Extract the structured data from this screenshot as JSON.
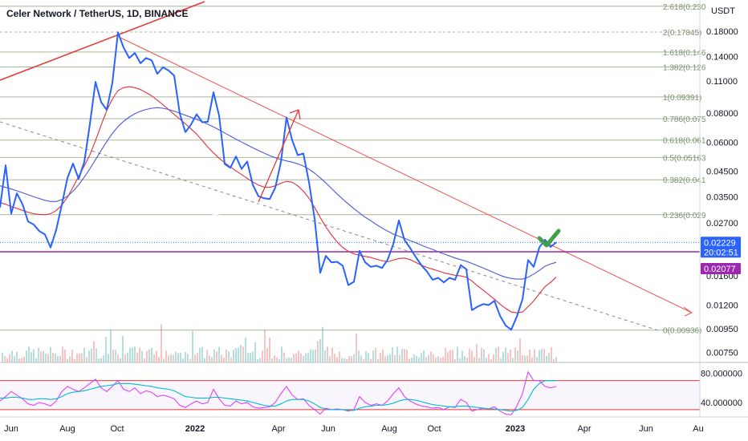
{
  "header": {
    "title": "Celer Network / TetherUS, 1D, BINANCE",
    "currency": "USDT"
  },
  "chart_data": [
    {
      "type": "line",
      "title": "Celer Network / TetherUS, 1D, BINANCE",
      "ylabel": "USDT",
      "y_scale": "log",
      "ylim": [
        0.0068,
        0.245
      ],
      "grid": false,
      "x_tick_labels": [
        "Jun",
        "Aug",
        "Oct",
        "2022",
        "Apr",
        "Jun",
        "Aug",
        "Oct",
        "2023",
        "Apr",
        "Jun",
        "Au"
      ],
      "y_tick_labels": [
        "0.18000",
        "0.14000",
        "0.11000",
        "0.08000",
        "0.06000",
        "0.04500",
        "0.03500",
        "0.02700",
        "0.01600",
        "0.01200",
        "0.00950",
        "0.00750"
      ],
      "y_tick_values": [
        0.18,
        0.14,
        0.11,
        0.08,
        0.06,
        0.045,
        0.035,
        0.027,
        0.016,
        0.012,
        0.0095,
        0.0075
      ],
      "fib_levels": [
        {
          "label": "2.618(0.230",
          "value": 0.2303
        },
        {
          "label": "2(0.17845)",
          "value": 0.17845
        },
        {
          "label": "1.618(0.146",
          "value": 0.1465
        },
        {
          "label": "1.382(0.126",
          "value": 0.1263
        },
        {
          "label": "1(0.09391)",
          "value": 0.09391
        },
        {
          "label": "0.786(0.075",
          "value": 0.0758
        },
        {
          "label": "0.618(0.061",
          "value": 0.0613
        },
        {
          "label": "0.5(0.05163",
          "value": 0.05163
        },
        {
          "label": "0.382(0.041",
          "value": 0.0414
        },
        {
          "label": "0.236(0.029",
          "value": 0.0293
        },
        {
          "label": "0(0.00936)",
          "value": 0.00936
        }
      ],
      "price_badges": [
        {
          "value": 0.02229,
          "label": "0.02229",
          "sublabel": "20:02:51",
          "color": "#2962ff"
        },
        {
          "value": 0.02077,
          "label": "0.02077",
          "color": "#9c27b0"
        }
      ],
      "series": [
        {
          "name": "",
          "color": "#2962ff",
          "role": "price",
          "values": [
            0.0315,
            0.0478,
            0.0296,
            0.0362,
            0.0325,
            0.0274,
            0.0266,
            0.0249,
            0.0241,
            0.0212,
            0.0252,
            0.0323,
            0.0421,
            0.0486,
            0.0418,
            0.0493,
            0.0718,
            0.109,
            0.0893,
            0.0826,
            0.108,
            0.178,
            0.153,
            0.138,
            0.145,
            0.131,
            0.138,
            0.135,
            0.118,
            0.126,
            0.122,
            0.116,
            0.0798,
            0.0663,
            0.0715,
            0.0791,
            0.0731,
            0.0736,
            0.0984,
            0.0781,
            0.0484,
            0.0466,
            0.0521,
            0.0461,
            0.0496,
            0.0394,
            0.0352,
            0.0345,
            0.0342,
            0.0383,
            0.0493,
            0.0767,
            0.0613,
            0.0528,
            0.0537,
            0.0404,
            0.0282,
            0.0165,
            0.0195,
            0.0183,
            0.0184,
            0.0177,
            0.0146,
            0.0151,
            0.0205,
            0.0183,
            0.0175,
            0.0177,
            0.0173,
            0.0188,
            0.0219,
            0.0277,
            0.0228,
            0.0211,
            0.0193,
            0.0178,
            0.0167,
            0.0154,
            0.0157,
            0.015,
            0.0157,
            0.0154,
            0.0178,
            0.0171,
            0.0114,
            0.0118,
            0.0121,
            0.012,
            0.0125,
            0.0108,
            0.0098,
            0.0094,
            0.0107,
            0.0127,
            0.0187,
            0.0175,
            0.0212,
            0.0229,
            0.0213,
            0.0223
          ]
        },
        {
          "name": "",
          "color": "#e0303a",
          "role": "moving-average",
          "values": [
            0.033,
            0.0325,
            0.0318,
            0.0312,
            0.0306,
            0.03,
            0.0296,
            0.0294,
            0.0293,
            0.0296,
            0.0305,
            0.0322,
            0.0348,
            0.0385,
            0.0428,
            0.0475,
            0.053,
            0.061,
            0.071,
            0.082,
            0.092,
            0.1,
            0.103,
            0.104,
            0.103,
            0.101,
            0.098,
            0.095,
            0.091,
            0.087,
            0.083,
            0.079,
            0.0755,
            0.072,
            0.0685,
            0.065,
            0.061,
            0.0572,
            0.054,
            0.0512,
            0.049,
            0.047,
            0.0452,
            0.0436,
            0.042,
            0.0405,
            0.0393,
            0.0385,
            0.0384,
            0.039,
            0.04,
            0.0408,
            0.0404,
            0.039,
            0.037,
            0.0345,
            0.0315,
            0.0285,
            0.026,
            0.024,
            0.0224,
            0.0212,
            0.0204,
            0.0199,
            0.0196,
            0.0194,
            0.0192,
            0.0189,
            0.0186,
            0.0184,
            0.0187,
            0.019,
            0.0191,
            0.0188,
            0.0183,
            0.0178,
            0.0174,
            0.0171,
            0.0168,
            0.0165,
            0.0163,
            0.0161,
            0.016,
            0.0158,
            0.0152,
            0.0145,
            0.0139,
            0.0133,
            0.0127,
            0.0121,
            0.0116,
            0.0112,
            0.0111,
            0.0112,
            0.0118,
            0.0125,
            0.0134,
            0.0144,
            0.015,
            0.0158
          ]
        },
        {
          "name": "",
          "color": "#4a5ad8",
          "role": "moving-average",
          "values": [
            0.039,
            0.0384,
            0.0378,
            0.0371,
            0.0364,
            0.0357,
            0.035,
            0.0344,
            0.0338,
            0.0334,
            0.0334,
            0.034,
            0.0352,
            0.037,
            0.0394,
            0.0425,
            0.0462,
            0.0505,
            0.0553,
            0.0605,
            0.0655,
            0.07,
            0.0738,
            0.077,
            0.0795,
            0.0815,
            0.083,
            0.084,
            0.0845,
            0.084,
            0.083,
            0.0816,
            0.08,
            0.0784,
            0.0768,
            0.0752,
            0.0735,
            0.0717,
            0.0698,
            0.0678,
            0.0658,
            0.0638,
            0.0619,
            0.0601,
            0.0584,
            0.0568,
            0.0553,
            0.0539,
            0.0526,
            0.0515,
            0.0506,
            0.0499,
            0.0493,
            0.0485,
            0.0474,
            0.046,
            0.0442,
            0.0422,
            0.0401,
            0.038,
            0.036,
            0.0342,
            0.0326,
            0.0311,
            0.0298,
            0.0286,
            0.0276,
            0.0266,
            0.0257,
            0.0249,
            0.0242,
            0.0237,
            0.0232,
            0.0227,
            0.0222,
            0.0217,
            0.0212,
            0.0208,
            0.0203,
            0.0199,
            0.0195,
            0.0191,
            0.0188,
            0.0185,
            0.0181,
            0.0177,
            0.0173,
            0.0169,
            0.0165,
            0.0161,
            0.0158,
            0.0156,
            0.0155,
            0.0155,
            0.0158,
            0.0163,
            0.0169,
            0.0176,
            0.018,
            0.0183
          ]
        }
      ]
    },
    {
      "type": "line",
      "ylim": [
        20,
        95
      ],
      "y_tick_labels": [
        "80.000000",
        "40.000000"
      ],
      "y_tick_values": [
        80,
        40
      ],
      "reference_lines": [
        70,
        30
      ],
      "series": [
        {
          "name": "",
          "color": "#e040fb",
          "values": [
            42,
            48,
            55,
            50,
            45,
            38,
            36,
            40,
            38,
            35,
            42,
            55,
            62,
            58,
            55,
            60,
            66,
            72,
            60,
            55,
            62,
            70,
            58,
            55,
            60,
            52,
            56,
            54,
            48,
            50,
            48,
            45,
            36,
            33,
            38,
            42,
            38,
            40,
            58,
            45,
            36,
            35,
            42,
            38,
            40,
            34,
            32,
            33,
            34,
            40,
            52,
            62,
            50,
            44,
            45,
            36,
            30,
            24,
            32,
            30,
            31,
            30,
            28,
            30,
            48,
            40,
            36,
            38,
            36,
            42,
            52,
            60,
            48,
            42,
            38,
            35,
            34,
            32,
            33,
            30,
            34,
            33,
            44,
            40,
            28,
            30,
            32,
            31,
            34,
            28,
            24,
            23,
            35,
            52,
            82,
            70,
            70,
            62,
            60,
            62
          ]
        },
        {
          "name": "",
          "color": "#00bcd4",
          "values": [
            46,
            46,
            47,
            47,
            46,
            44,
            44,
            45,
            45,
            44,
            45,
            48,
            52,
            54,
            55,
            56,
            58,
            60,
            62,
            63,
            64,
            66,
            66,
            66,
            65,
            64,
            63,
            62,
            60,
            59,
            58,
            56,
            52,
            48,
            47,
            46,
            46,
            46,
            47,
            47,
            46,
            45,
            44,
            43,
            42,
            40,
            38,
            36,
            35,
            35,
            38,
            42,
            44,
            44,
            44,
            42,
            38,
            33,
            31,
            30,
            30,
            30,
            29,
            29,
            32,
            34,
            35,
            36,
            36,
            37,
            39,
            42,
            44,
            44,
            43,
            41,
            39,
            37,
            36,
            35,
            34,
            34,
            35,
            35,
            34,
            33,
            32,
            31,
            31,
            30,
            29,
            28,
            29,
            33,
            44,
            58,
            66,
            70,
            70,
            70
          ]
        }
      ]
    }
  ]
}
